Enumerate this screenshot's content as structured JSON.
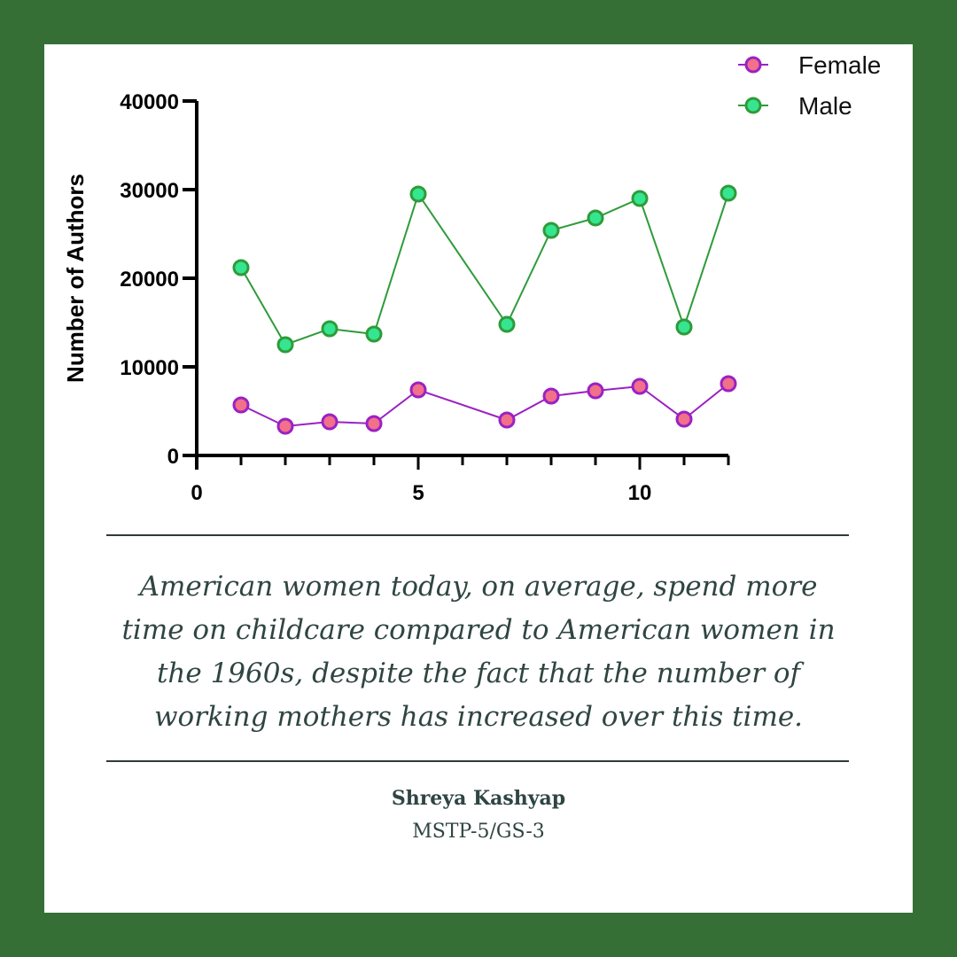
{
  "chart_data": {
    "type": "line",
    "title": "",
    "xlabel": "",
    "ylabel": "Number of Authors",
    "xlim": [
      0,
      12
    ],
    "ylim": [
      0,
      40000
    ],
    "x_ticks": [
      0,
      5,
      10
    ],
    "y_ticks": [
      0,
      10000,
      20000,
      30000,
      40000
    ],
    "grid": false,
    "legend_position": "top-right",
    "x": [
      1,
      2,
      3,
      4,
      5,
      7,
      8,
      9,
      10,
      11,
      12
    ],
    "series": [
      {
        "name": "Female",
        "values": [
          5700,
          3300,
          3800,
          3600,
          7400,
          4000,
          6700,
          7300,
          7800,
          4100,
          8100
        ],
        "line_color": "#9b21c4",
        "marker_fill": "#f1708a"
      },
      {
        "name": "Male",
        "values": [
          21200,
          12500,
          14300,
          13700,
          29500,
          14800,
          25400,
          26800,
          29000,
          14500,
          29600
        ],
        "line_color": "#2e9b3a",
        "marker_fill": "#36e58f"
      }
    ]
  },
  "quote": {
    "lines": [
      "American women today, on average, spend more",
      "time on childcare compared to American women in",
      "the 1960s, despite the fact that the number of",
      "working mothers has increased over this time."
    ]
  },
  "byline": {
    "author": "Shreya Kashyap",
    "affiliation": "MSTP-5/GS-3"
  },
  "colors": {
    "frame": "#356f36",
    "card": "#ffffff",
    "text": "#2f4542"
  }
}
